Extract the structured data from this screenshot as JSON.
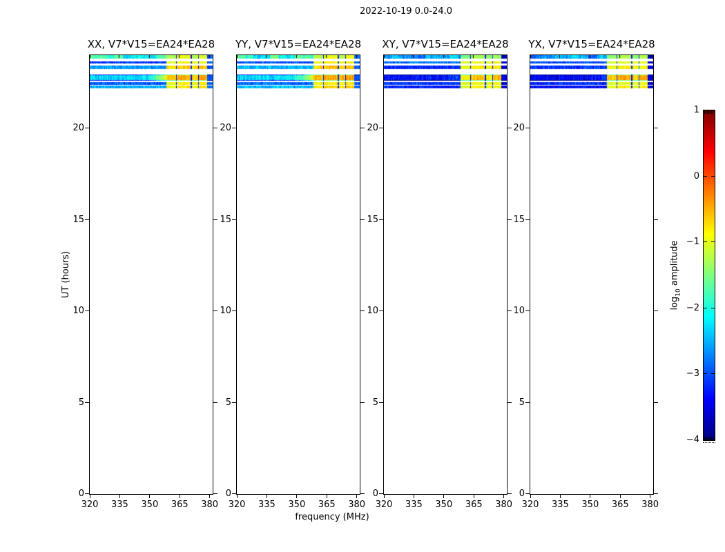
{
  "chart_data": {
    "type": "heatmap",
    "title": "2022-10-19 0.0-24.0",
    "xlabel": "frequency (MHz)",
    "ylabel": "UT (hours)",
    "x_ticks": [
      320,
      335,
      350,
      365,
      380
    ],
    "y_ticks": [
      0,
      5,
      10,
      15,
      20
    ],
    "freq_range_mhz": [
      320,
      381.5
    ],
    "ut_range_hours": [
      0,
      24
    ],
    "panels": [
      {
        "pol": "XX",
        "title": "XX, V7*V15=EA24*EA28"
      },
      {
        "pol": "YY",
        "title": "YY, V7*V15=EA24*EA28"
      },
      {
        "pol": "XY",
        "title": "XY, V7*V15=EA24*EA28"
      },
      {
        "pol": "YX",
        "title": "YX, V7*V15=EA24*EA28"
      }
    ],
    "panel_value_order": [
      "XX",
      "YY",
      "XY",
      "YX"
    ],
    "stripes": [
      {
        "ut": [
          23.8,
          24.0
        ],
        "base": [
          -2.0,
          -2.0,
          -2.6,
          -2.8
        ],
        "block": [
          -1.25,
          -1.2,
          -1.5,
          -1.4
        ],
        "hot": [
          -1.0,
          -0.95,
          -1.3,
          -1.2
        ]
      },
      {
        "ut": [
          23.55,
          23.66
        ],
        "base": [
          -3.1,
          -3.0,
          -2.8,
          -3.0
        ],
        "block": [
          -1.05,
          -1.0,
          -1.05,
          -1.1
        ],
        "hot": [
          -0.9,
          -0.85,
          -0.95,
          -1.0
        ]
      },
      {
        "ut": [
          23.25,
          23.43
        ],
        "base": [
          -2.6,
          -2.5,
          -3.2,
          -3.1
        ],
        "block": [
          -0.75,
          -0.7,
          -0.95,
          -0.95
        ],
        "hot": [
          -0.6,
          -0.55,
          -0.8,
          -0.85
        ]
      },
      {
        "ut": [
          22.6,
          22.94
        ],
        "base": [
          -2.3,
          -2.25,
          -3.3,
          -3.45
        ],
        "block": [
          -0.65,
          -0.55,
          -0.9,
          -0.65
        ],
        "hot": [
          -0.45,
          -0.4,
          -0.55,
          -0.45
        ]
      },
      {
        "ut": [
          22.39,
          22.52
        ],
        "base": [
          -2.9,
          -2.85,
          -3.1,
          -3.2
        ],
        "block": [
          -0.95,
          -0.9,
          -1.05,
          -1.05
        ],
        "hot": [
          -0.85,
          -0.8,
          -0.95,
          -0.95
        ]
      },
      {
        "ut": [
          22.17,
          22.34
        ],
        "base": [
          -2.5,
          -2.45,
          -3.25,
          -3.35
        ],
        "block": [
          -0.9,
          -0.8,
          -1.0,
          -1.0
        ],
        "hot": [
          -0.75,
          -0.65,
          -0.9,
          -0.85
        ]
      }
    ],
    "rfi": {
      "clean_band_end_mhz": 358.5,
      "block_bounds_mhz": [
        363.1,
        370.6,
        374.3
      ],
      "gaps_mhz": [
        [
          363.1,
          363.6
        ],
        [
          370.6,
          371.1
        ],
        [
          374.3,
          374.7
        ]
      ],
      "gap_value": -3.3,
      "right_dark_start_mhz": 378.6,
      "right_dark_value": [
        -2.9,
        -2.9,
        -3.6,
        -3.6
      ]
    }
  },
  "colorbar": {
    "label_prefix": "log",
    "label_sub": "10",
    "label_suffix": " amplitude",
    "colormap": "jet",
    "vmin": -4,
    "vmax": 1,
    "ticks": [
      {
        "v": 1,
        "label": "1"
      },
      {
        "v": 0,
        "label": "0"
      },
      {
        "v": -1,
        "label": "−1"
      },
      {
        "v": -2,
        "label": "−2"
      },
      {
        "v": -3,
        "label": "−3"
      },
      {
        "v": -4,
        "label": "−4"
      }
    ]
  }
}
